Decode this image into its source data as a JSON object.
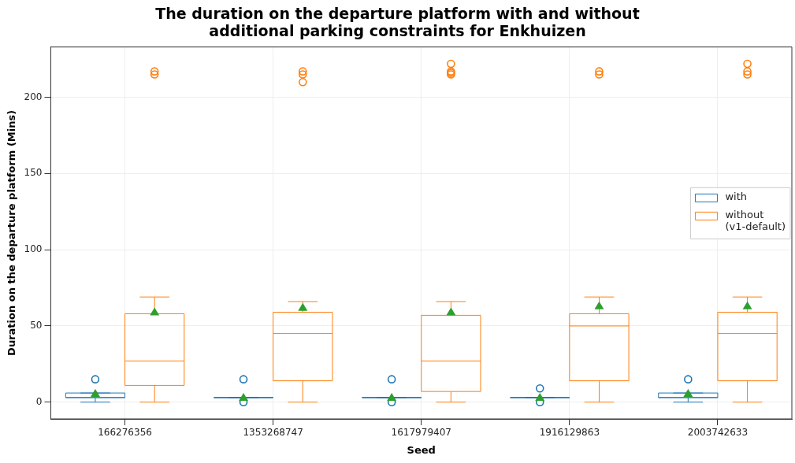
{
  "chart_data": {
    "type": "box",
    "title": "The duration on the departure platform with and without additional parking constraints for Enkhuizen",
    "xlabel": "Seed",
    "ylabel": "Duration on the departure platform (Mins)",
    "categories": [
      "166276356",
      "1353268747",
      "1617979407",
      "1916129863",
      "2003742633"
    ],
    "ylim": [
      -11,
      233
    ],
    "yticks": [
      0,
      50,
      100,
      150,
      200
    ],
    "grid": true,
    "legend": "right",
    "marker": "circle",
    "series": [
      {
        "name": "with",
        "color": "#1f77b4",
        "boxes": [
          {
            "low": 0,
            "q1": 3,
            "median": 3,
            "q3": 6,
            "high": 6,
            "mean": 5.5,
            "outliers": [
              15
            ]
          },
          {
            "low": 3,
            "q1": 3,
            "median": 3,
            "q3": 3,
            "high": 3,
            "mean": 3,
            "outliers": [
              0,
              15
            ]
          },
          {
            "low": 3,
            "q1": 3,
            "median": 3,
            "q3": 3,
            "high": 3,
            "mean": 3,
            "outliers": [
              0,
              15
            ]
          },
          {
            "low": 3,
            "q1": 3,
            "median": 3,
            "q3": 3,
            "high": 3,
            "mean": 3,
            "outliers": [
              0,
              9
            ]
          },
          {
            "low": 0,
            "q1": 3,
            "median": 3,
            "q3": 6,
            "high": 6,
            "mean": 5.5,
            "outliers": [
              15
            ]
          }
        ]
      },
      {
        "name": "without (v1-default)",
        "color": "#ff7f0e",
        "boxes": [
          {
            "low": 0,
            "q1": 11,
            "median": 27,
            "q3": 58,
            "high": 69,
            "mean": 59,
            "outliers": [
              215,
              217
            ]
          },
          {
            "low": 0,
            "q1": 14,
            "median": 45,
            "q3": 59,
            "high": 66,
            "mean": 62,
            "outliers": [
              210,
              215,
              217
            ]
          },
          {
            "low": 0,
            "q1": 7,
            "median": 27,
            "q3": 57,
            "high": 66,
            "mean": 59,
            "outliers": [
              215,
              216,
              217,
              222
            ]
          },
          {
            "low": 0,
            "q1": 14,
            "median": 50,
            "q3": 58,
            "high": 69,
            "mean": 63,
            "outliers": [
              215,
              217
            ]
          },
          {
            "low": 0,
            "q1": 14,
            "median": 45,
            "q3": 59,
            "high": 69,
            "mean": 63,
            "outliers": [
              215,
              217,
              222
            ]
          }
        ]
      }
    ]
  }
}
